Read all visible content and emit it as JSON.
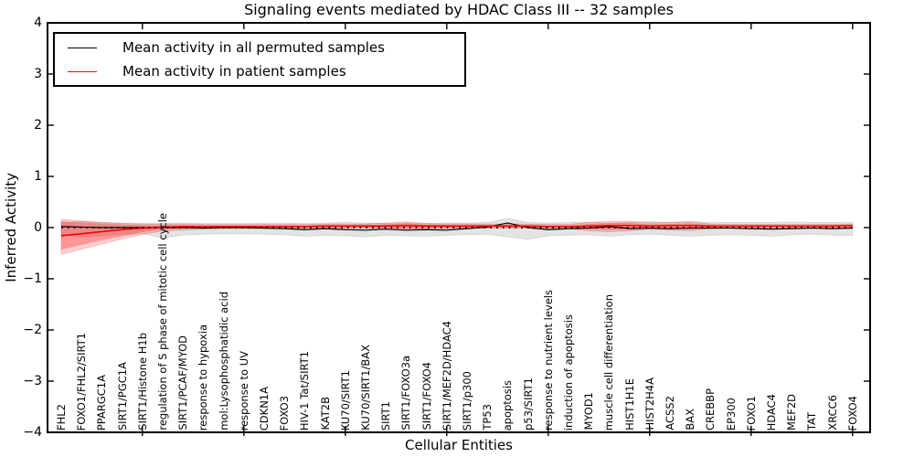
{
  "chart_data": {
    "type": "line",
    "title": "Signaling events mediated by HDAC Class III -- 32 samples",
    "xlabel": "Cellular Entities",
    "ylabel": "Inferred Activity",
    "ylim": [
      -4,
      4
    ],
    "ytick_labels": [
      "4",
      "3",
      "2",
      "1",
      "0",
      "−1",
      "−2",
      "−3",
      "−4"
    ],
    "xtick_every": 5,
    "grid": false,
    "legend_position": "upper-left",
    "categories": [
      "FHL2",
      "FOXO1/FHL2/SIRT1",
      "PPARGC1A",
      "SIRT1/PGC1A",
      "SIRT1/Histone H1b",
      "regulation of S phase of mitotic cell cycle",
      "SIRT1/PCAF/MYOD",
      "response to hypoxia",
      "mol:Lysophosphatidic acid",
      "response to UV",
      "CDKN1A",
      "FOXO3",
      "HIV-1 Tat/SIRT1",
      "KAT2B",
      "KU70/SIRT1",
      "KU70/SIRT1/BAX",
      "SIRT1",
      "SIRT1/FOXO3a",
      "SIRT1/FOXO4",
      "SIRT1/MEF2D/HDAC4",
      "SIRT1/p300",
      "TP53",
      "apoptosis",
      "p53/SIRT1",
      "response to nutrient levels",
      "induction of apoptosis",
      "MYOD1",
      "muscle cell differentiation",
      "HIST1H1E",
      "HIST2H4A",
      "ACSS2",
      "BAX",
      "CREBBP",
      "EP300",
      "FOXO1",
      "HDAC4",
      "MEF2D",
      "TAT",
      "XRCC6",
      "FOXO4"
    ],
    "series": [
      {
        "name": "Mean activity in all permuted samples",
        "color": "#000000",
        "values": [
          0.02,
          0.01,
          0.0,
          0.0,
          0.0,
          0.0,
          0.0,
          -0.01,
          0.0,
          0.0,
          -0.01,
          -0.02,
          -0.04,
          -0.02,
          -0.04,
          -0.05,
          -0.03,
          -0.05,
          -0.04,
          -0.05,
          -0.02,
          0.01,
          0.09,
          0.0,
          -0.04,
          -0.02,
          -0.01,
          0.02,
          -0.02,
          -0.01,
          -0.02,
          -0.01,
          -0.01,
          -0.01,
          -0.02,
          -0.03,
          -0.02,
          -0.01,
          -0.02,
          -0.01
        ]
      },
      {
        "name": "Mean activity in patient samples",
        "color": "#ff0000",
        "values": [
          -0.16,
          -0.12,
          -0.08,
          -0.04,
          -0.01,
          0.01,
          0.02,
          0.02,
          0.02,
          0.02,
          0.02,
          0.02,
          0.02,
          0.03,
          0.03,
          0.03,
          0.03,
          0.04,
          0.03,
          0.03,
          0.03,
          0.03,
          0.03,
          0.03,
          0.02,
          0.02,
          0.03,
          0.04,
          0.04,
          0.03,
          0.04,
          0.04,
          0.03,
          0.03,
          0.03,
          0.03,
          0.03,
          0.03,
          0.03,
          0.04
        ]
      }
    ],
    "bands": [
      {
        "name": "permuted-envelope",
        "fill": "rgba(0,0,0,0.11)",
        "edge": "rgba(0,0,0,0.10)",
        "upper": [
          0.1,
          0.12,
          0.1,
          0.09,
          0.08,
          0.09,
          0.09,
          0.08,
          0.08,
          0.08,
          0.09,
          0.09,
          0.08,
          0.09,
          0.1,
          0.09,
          0.08,
          0.09,
          0.08,
          0.09,
          0.09,
          0.1,
          0.18,
          0.1,
          0.09,
          0.1,
          0.1,
          0.09,
          0.1,
          0.12,
          0.1,
          0.12,
          0.1,
          0.1,
          0.1,
          0.1,
          0.11,
          0.1,
          0.1,
          0.1
        ],
        "lower": [
          -0.14,
          -0.18,
          -0.16,
          -0.13,
          -0.12,
          -0.2,
          -0.15,
          -0.13,
          -0.12,
          -0.12,
          -0.13,
          -0.14,
          -0.17,
          -0.15,
          -0.16,
          -0.18,
          -0.15,
          -0.16,
          -0.17,
          -0.15,
          -0.14,
          -0.13,
          -0.18,
          -0.23,
          -0.16,
          -0.15,
          -0.14,
          -0.17,
          -0.14,
          -0.13,
          -0.15,
          -0.17,
          -0.15,
          -0.14,
          -0.15,
          -0.17,
          -0.14,
          -0.13,
          -0.15,
          -0.15
        ]
      },
      {
        "name": "patient-envelope-outer",
        "fill": "rgba(255,0,0,0.18)",
        "edge": "rgba(255,0,0,0.22)",
        "upper": [
          0.16,
          0.13,
          0.1,
          0.08,
          0.07,
          0.06,
          0.07,
          0.06,
          0.06,
          0.06,
          0.06,
          0.06,
          0.06,
          0.07,
          0.07,
          0.07,
          0.09,
          0.11,
          0.08,
          0.07,
          0.07,
          0.07,
          0.07,
          0.07,
          0.06,
          0.06,
          0.1,
          0.12,
          0.12,
          0.09,
          0.1,
          0.11,
          0.07,
          0.06,
          0.06,
          0.06,
          0.06,
          0.06,
          0.06,
          0.07
        ],
        "lower": [
          -0.52,
          -0.42,
          -0.32,
          -0.22,
          -0.13,
          -0.07,
          -0.05,
          -0.03,
          -0.02,
          -0.02,
          -0.02,
          -0.02,
          -0.02,
          -0.02,
          -0.01,
          -0.01,
          -0.04,
          -0.05,
          -0.02,
          -0.02,
          -0.01,
          -0.01,
          -0.01,
          -0.01,
          -0.02,
          -0.02,
          -0.06,
          -0.08,
          -0.06,
          -0.03,
          -0.05,
          -0.06,
          -0.02,
          -0.01,
          -0.01,
          -0.01,
          -0.01,
          -0.01,
          -0.01,
          -0.02
        ]
      },
      {
        "name": "patient-envelope-inner",
        "fill": "rgba(255,0,0,0.28)",
        "edge": "rgba(255,0,0,0.0)",
        "upper": [
          0.12,
          0.1,
          0.08,
          0.06,
          0.05,
          0.04,
          0.05,
          0.04,
          0.04,
          0.04,
          0.04,
          0.04,
          0.04,
          0.05,
          0.05,
          0.05,
          0.06,
          0.08,
          0.06,
          0.05,
          0.05,
          0.05,
          0.05,
          0.05,
          0.04,
          0.04,
          0.07,
          0.09,
          0.09,
          0.06,
          0.07,
          0.08,
          0.05,
          0.04,
          0.04,
          0.04,
          0.04,
          0.04,
          0.04,
          0.05
        ],
        "lower": [
          -0.43,
          -0.34,
          -0.25,
          -0.17,
          -0.09,
          -0.04,
          -0.02,
          -0.01,
          0.0,
          0.0,
          0.0,
          0.0,
          0.0,
          0.0,
          0.01,
          0.01,
          -0.01,
          -0.02,
          0.0,
          0.0,
          0.01,
          0.01,
          0.01,
          0.01,
          0.0,
          0.0,
          -0.03,
          -0.05,
          -0.03,
          0.0,
          -0.02,
          -0.03,
          0.0,
          0.01,
          0.01,
          0.01,
          0.01,
          0.01,
          0.01,
          0.0
        ]
      }
    ],
    "zero_line": {
      "value": 0,
      "style": "dotted",
      "color": "#000000"
    },
    "legend": {
      "entries": [
        {
          "label": "Mean activity in all permuted samples",
          "color": "#000000"
        },
        {
          "label": "Mean activity in patient samples",
          "color": "#ff0000"
        }
      ]
    }
  }
}
